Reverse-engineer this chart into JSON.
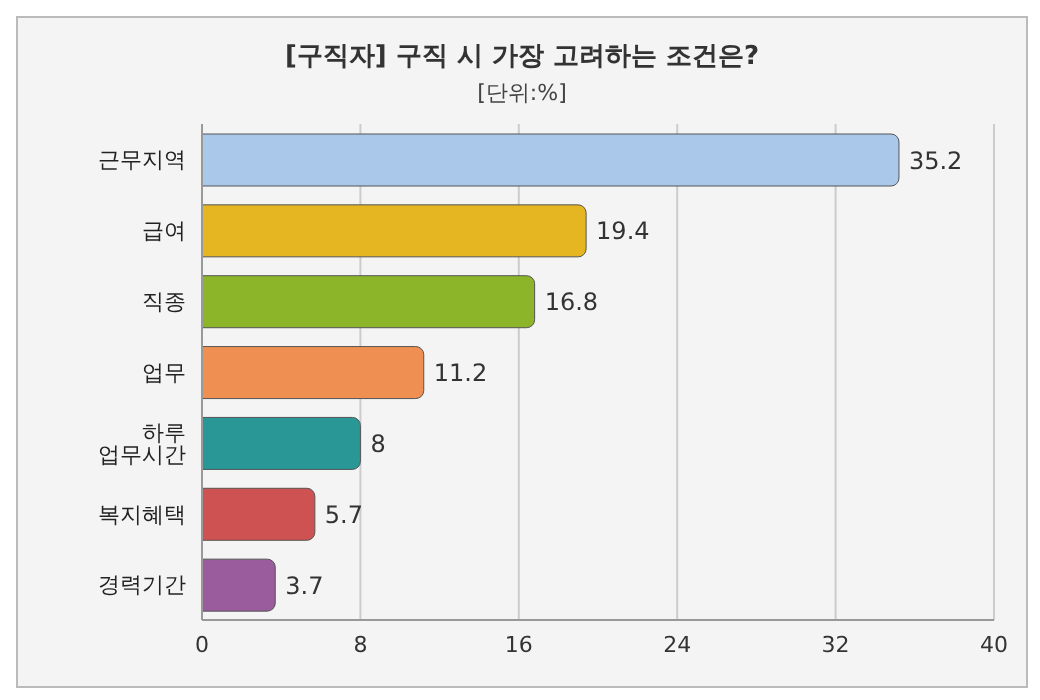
{
  "chart_data": {
    "type": "bar",
    "orientation": "horizontal",
    "title": "[구직자] 구직 시 가장 고려하는 조건은?",
    "subtitle": "[단위:%]",
    "categories": [
      "근무지역",
      "급여",
      "직종",
      "업무",
      "하루 업무시간",
      "복지혜택",
      "경력기간"
    ],
    "values": [
      35.2,
      19.4,
      16.8,
      11.2,
      8,
      5.7,
      3.7
    ],
    "colors": [
      "#a9c8ea",
      "#e6b622",
      "#8db52a",
      "#ef8f52",
      "#2a9797",
      "#cf5252",
      "#9a5c9c"
    ],
    "xlim": [
      0,
      40
    ],
    "xticks": [
      0,
      8,
      16,
      24,
      32,
      40
    ],
    "grid": "x",
    "data_labels": true
  }
}
